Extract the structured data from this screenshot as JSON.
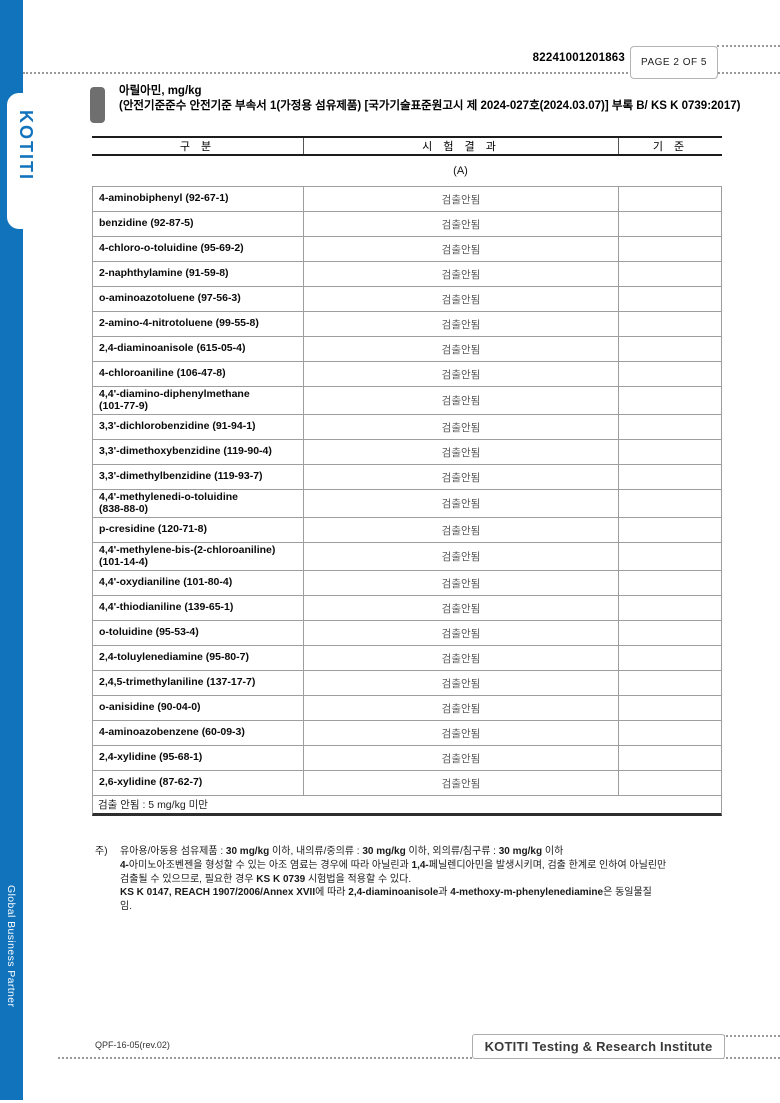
{
  "page": {
    "doc_number": "82241001201863",
    "page_label": "PAGE 2 OF 5",
    "footer_code": "QPF-16-05(rev.02)",
    "footer_org": "KOTITI Testing & Research Institute"
  },
  "sidebar": {
    "logo_text": "KOTITI",
    "tagline": "Global Business Partner",
    "accent_color": "#1173bc"
  },
  "header": {
    "title_line1": "아릴아민, mg/kg",
    "title_line2": "(안전기준준수 안전기준 부속서 1(가정용 섬유제품) [국가기술표준원고시 제 2024-027호(2024.03.07)] 부록 B/ KS K 0739:2017)"
  },
  "table": {
    "columns": [
      "구 분",
      "시 험 결 과",
      "기 준"
    ],
    "sample_label": "(A)",
    "rows": [
      {
        "name": "4-aminobiphenyl (92-67-1)",
        "result": "검출안됨",
        "standard": ""
      },
      {
        "name": "benzidine (92-87-5)",
        "result": "검출안됨",
        "standard": ""
      },
      {
        "name": "4-chloro-o-toluidine (95-69-2)",
        "result": "검출안됨",
        "standard": ""
      },
      {
        "name": "2-naphthylamine (91-59-8)",
        "result": "검출안됨",
        "standard": ""
      },
      {
        "name": "o-aminoazotoluene (97-56-3)",
        "result": "검출안됨",
        "standard": ""
      },
      {
        "name": "2-amino-4-nitrotoluene (99-55-8)",
        "result": "검출안됨",
        "standard": ""
      },
      {
        "name": "2,4-diaminoanisole (615-05-4)",
        "result": "검출안됨",
        "standard": ""
      },
      {
        "name": "4-chloroaniline (106-47-8)",
        "result": "검출안됨",
        "standard": ""
      },
      {
        "name": "4,4'-diamino-diphenylmethane\n(101-77-9)",
        "result": "검출안됨",
        "standard": ""
      },
      {
        "name": "3,3'-dichlorobenzidine (91-94-1)",
        "result": "검출안됨",
        "standard": ""
      },
      {
        "name": "3,3'-dimethoxybenzidine (119-90-4)",
        "result": "검출안됨",
        "standard": ""
      },
      {
        "name": "3,3'-dimethylbenzidine (119-93-7)",
        "result": "검출안됨",
        "standard": ""
      },
      {
        "name": "4,4'-methylenedi-o-toluidine\n(838-88-0)",
        "result": "검출안됨",
        "standard": ""
      },
      {
        "name": "p-cresidine (120-71-8)",
        "result": "검출안됨",
        "standard": ""
      },
      {
        "name": "4,4'-methylene-bis-(2-chloroaniline)\n (101-14-4)",
        "result": "검출안됨",
        "standard": ""
      },
      {
        "name": "4,4'-oxydianiline (101-80-4)",
        "result": "검출안됨",
        "standard": ""
      },
      {
        "name": "4,4'-thiodianiline (139-65-1)",
        "result": "검출안됨",
        "standard": ""
      },
      {
        "name": "o-toluidine (95-53-4)",
        "result": "검출안됨",
        "standard": ""
      },
      {
        "name": "2,4-toluylenediamine (95-80-7)",
        "result": "검출안됨",
        "standard": ""
      },
      {
        "name": "2,4,5-trimethylaniline (137-17-7)",
        "result": "검출안됨",
        "standard": ""
      },
      {
        "name": "o-anisidine (90-04-0)",
        "result": "검출안됨",
        "standard": ""
      },
      {
        "name": "4-aminoazobenzene (60-09-3)",
        "result": "검출안됨",
        "standard": ""
      },
      {
        "name": "2,4-xylidine (95-68-1)",
        "result": "검출안됨",
        "standard": ""
      },
      {
        "name": "2,6-xylidine (87-62-7)",
        "result": "검출안됨",
        "standard": ""
      }
    ],
    "footnote": "검출 안됨 : 5 mg/kg 미만"
  },
  "notes": {
    "marker": "주)",
    "lines": [
      [
        {
          "t": "유아용/아동용 섬유제품 : ",
          "b": false
        },
        {
          "t": "30 mg/kg",
          "b": true
        },
        {
          "t": " 이하, 내의류/중의류 : ",
          "b": false
        },
        {
          "t": "30 mg/kg",
          "b": true
        },
        {
          "t": " 이하, 외의류/침구류 : ",
          "b": false
        },
        {
          "t": "30 mg/kg",
          "b": true
        },
        {
          "t": " 이하",
          "b": false
        }
      ],
      [
        {
          "t": "4-",
          "b": true
        },
        {
          "t": "아미노아조벤젠을 형성할 수 있는 아조 염료는 경우에 따라 아닐린과 ",
          "b": false
        },
        {
          "t": "1,4-",
          "b": true
        },
        {
          "t": "페닐렌디아민을 발생시키며, 검출 한계로 인하여 아닐린만",
          "b": false
        }
      ],
      [
        {
          "t": "검출될 수 있으므로, 필요한 경우 ",
          "b": false
        },
        {
          "t": "KS K 0739",
          "b": true
        },
        {
          "t": " 시험법을 적용할 수 있다.",
          "b": false
        }
      ],
      [
        {
          "t": "KS K 0147, REACH 1907/2006/Annex XVII",
          "b": true
        },
        {
          "t": "에 따라 ",
          "b": false
        },
        {
          "t": "2,4-diaminoanisole",
          "b": true
        },
        {
          "t": "과 ",
          "b": false
        },
        {
          "t": "4-methoxy-m-phenylenediamine",
          "b": true
        },
        {
          "t": "은 동일물질",
          "b": false
        }
      ],
      [
        {
          "t": "임.",
          "b": false
        }
      ]
    ]
  }
}
